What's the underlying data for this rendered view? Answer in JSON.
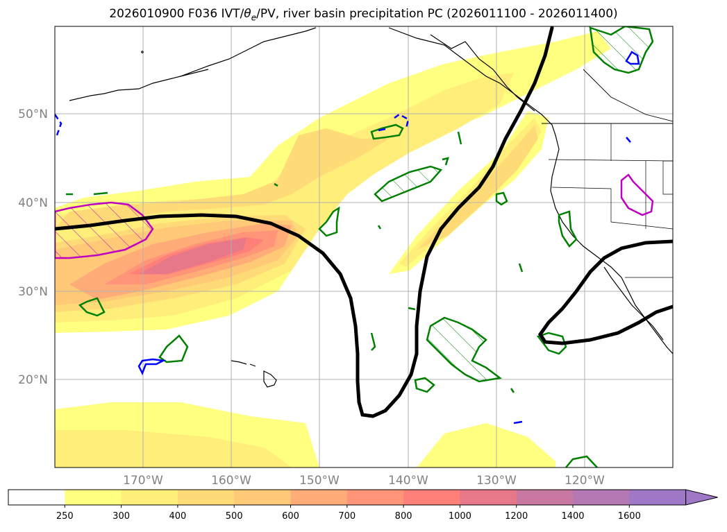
{
  "title": {
    "prefix": "2026010900 F036 IVT/",
    "theta": "θ",
    "theta_sub": "e",
    "suffix": "/PV, river basin precipitation PC (2026011100 - 2026011400)"
  },
  "latitude_labels": [
    "50°N",
    "40°N",
    "30°N",
    "20°N"
  ],
  "longitude_labels": [
    "170°W",
    "160°W",
    "150°W",
    "140°W",
    "130°W",
    "120°W"
  ],
  "colorbar": {
    "levels": [
      "250",
      "300",
      "400",
      "500",
      "600",
      "700",
      "800",
      "1000",
      "1200",
      "1400",
      "1600"
    ],
    "colors": [
      "#ffffff",
      "#ffff80",
      "#ffee7a",
      "#ffdb78",
      "#ffc978",
      "#ffac78",
      "#ff9478",
      "#ff8078",
      "#e6788a",
      "#c878a0",
      "#b478b4",
      "#a078c8"
    ]
  },
  "map_colors": {
    "ocean": "#ffffff",
    "coast": "#000000",
    "pv_contour": "#000000",
    "green_contour": "#008000",
    "blue_contour": "#0000ff",
    "magenta_contour": "#c000c0",
    "grid": "#b0b0b0"
  }
}
